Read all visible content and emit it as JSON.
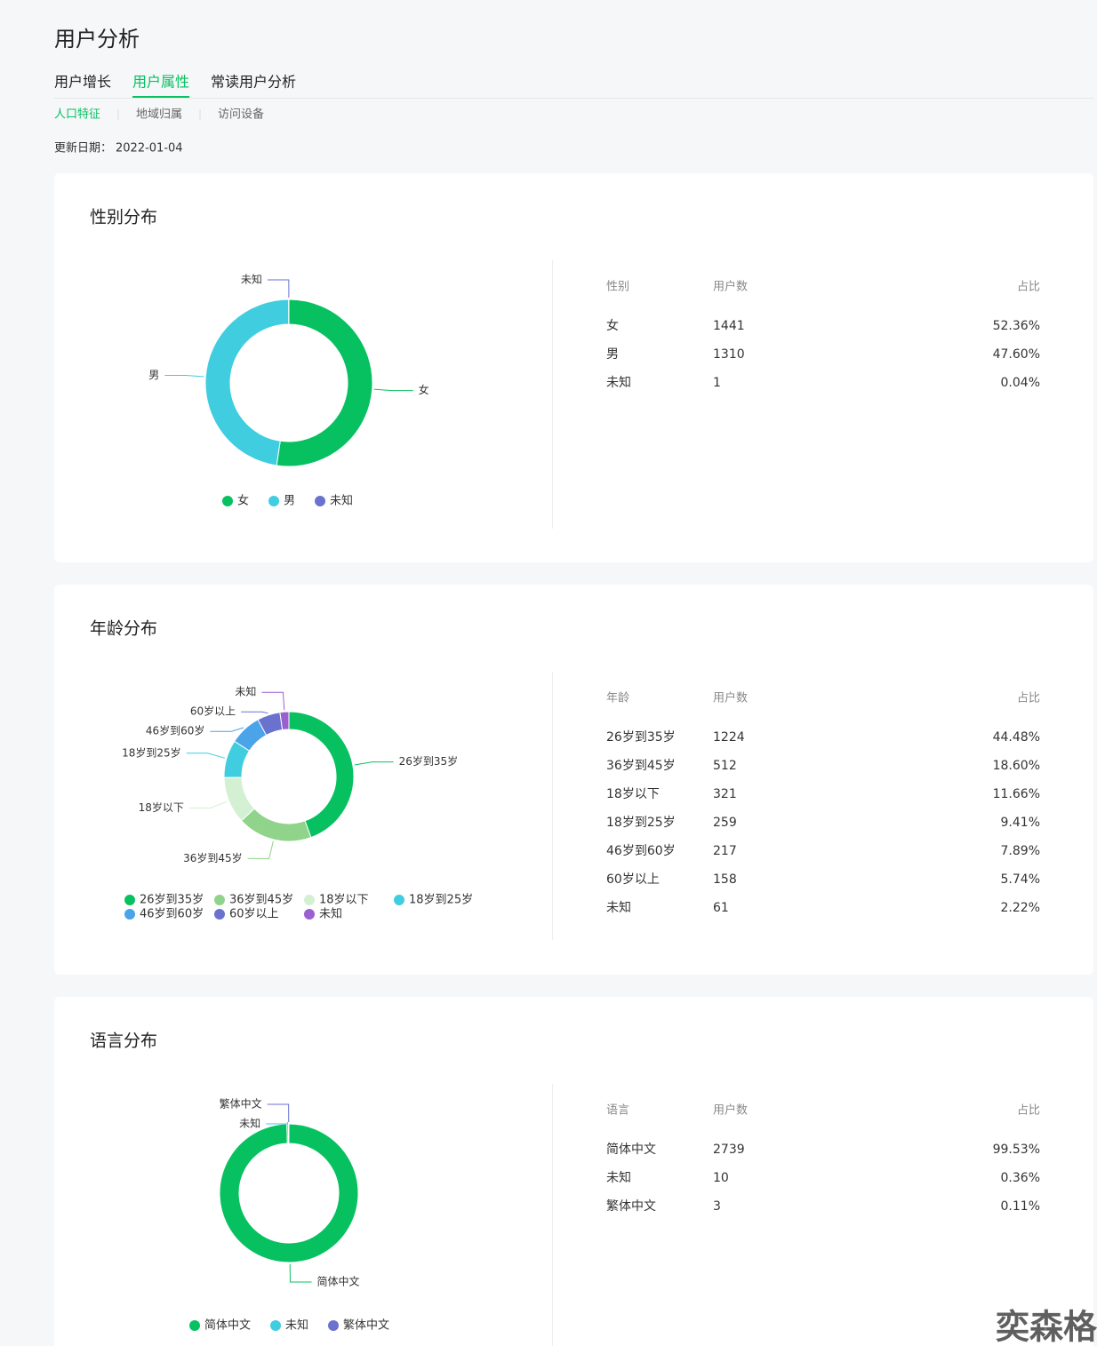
{
  "header": {
    "title": "用户分析",
    "tabs": [
      "用户增长",
      "用户属性",
      "常读用户分析"
    ],
    "active_tab": 1,
    "subtabs": [
      "人口特征",
      "地域归属",
      "访问设备"
    ],
    "active_subtab": 0,
    "update_label": "更新日期：",
    "update_date": "2022-01-04"
  },
  "sections": [
    {
      "title": "性别分布",
      "chart_type": "donut",
      "columns": [
        "性别",
        "用户数",
        "占比"
      ],
      "rows": [
        {
          "label": "女",
          "count": 1441,
          "share": "52.36%",
          "color": "#07c160"
        },
        {
          "label": "男",
          "count": 1310,
          "share": "47.60%",
          "color": "#40cde0"
        },
        {
          "label": "未知",
          "count": 1,
          "share": "0.04%",
          "color": "#6a72d0"
        }
      ]
    },
    {
      "title": "年龄分布",
      "chart_type": "donut",
      "columns": [
        "年龄",
        "用户数",
        "占比"
      ],
      "rows": [
        {
          "label": "26岁到35岁",
          "count": 1224,
          "share": "44.48%",
          "color": "#07c160"
        },
        {
          "label": "36岁到45岁",
          "count": 512,
          "share": "18.60%",
          "color": "#8fd48a"
        },
        {
          "label": "18岁以下",
          "count": 321,
          "share": "11.66%",
          "color": "#d3f0d3"
        },
        {
          "label": "18岁到25岁",
          "count": 259,
          "share": "9.41%",
          "color": "#40cde0"
        },
        {
          "label": "46岁到60岁",
          "count": 217,
          "share": "7.89%",
          "color": "#4ba3ea"
        },
        {
          "label": "60岁以上",
          "count": 158,
          "share": "5.74%",
          "color": "#6a72d0"
        },
        {
          "label": "未知",
          "count": 61,
          "share": "2.22%",
          "color": "#9b60d0"
        }
      ]
    },
    {
      "title": "语言分布",
      "chart_type": "donut",
      "columns": [
        "语言",
        "用户数",
        "占比"
      ],
      "rows": [
        {
          "label": "简体中文",
          "count": 2739,
          "share": "99.53%",
          "color": "#07c160"
        },
        {
          "label": "未知",
          "count": 10,
          "share": "0.36%",
          "color": "#40cde0"
        },
        {
          "label": "繁体中文",
          "count": 3,
          "share": "0.11%",
          "color": "#6a72d0"
        }
      ]
    }
  ],
  "watermark": "奕森格"
}
